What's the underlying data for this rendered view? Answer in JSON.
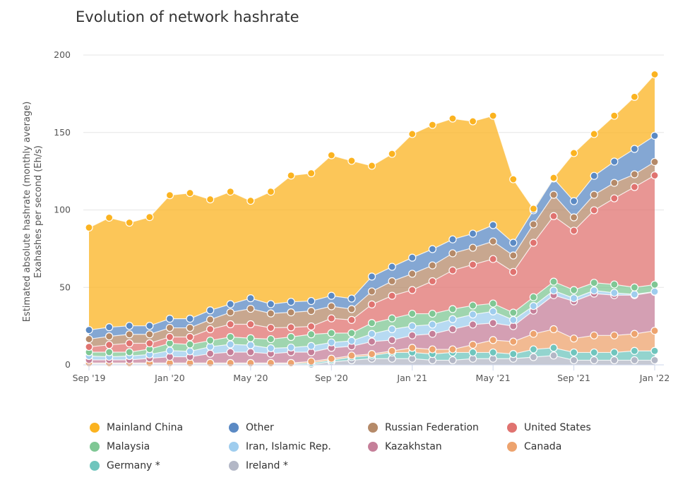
{
  "chart_data": {
    "type": "area",
    "stacked": true,
    "title": "Evolution of network hashrate",
    "ylabel_lines": [
      "Estimated absolute hashrate (monthly average)",
      "Exahashes per second (Eh/s)"
    ],
    "ylim": [
      0,
      200
    ],
    "yticks": [
      0,
      50,
      100,
      150,
      200
    ],
    "grid": true,
    "legend_placement": "bottom",
    "x": [
      "2019-09",
      "2019-10",
      "2019-11",
      "2019-12",
      "2020-01",
      "2020-02",
      "2020-03",
      "2020-04",
      "2020-05",
      "2020-06",
      "2020-07",
      "2020-08",
      "2020-09",
      "2020-10",
      "2020-11",
      "2020-12",
      "2021-01",
      "2021-02",
      "2021-03",
      "2021-04",
      "2021-05",
      "2021-06",
      "2021-07",
      "2021-08",
      "2021-09",
      "2021-10",
      "2021-11",
      "2021-12",
      "2022-01"
    ],
    "xticks": [
      {
        "x": "2019-09",
        "label": "Sep '19"
      },
      {
        "x": "2020-01",
        "label": "Jan '20"
      },
      {
        "x": "2020-05",
        "label": "May '20"
      },
      {
        "x": "2020-09",
        "label": "Sep '20"
      },
      {
        "x": "2021-01",
        "label": "Jan '21"
      },
      {
        "x": "2021-05",
        "label": "May '21"
      },
      {
        "x": "2021-09",
        "label": "Sep '21"
      },
      {
        "x": "2022-01",
        "label": "Jan '22"
      }
    ],
    "series": [
      {
        "name": "Ireland *",
        "color": "#b3b7c6",
        "values": [
          0.2,
          0.2,
          0.2,
          0.2,
          0.2,
          0.2,
          0.2,
          0.2,
          0.2,
          0.2,
          0.2,
          0.2,
          2,
          3,
          4,
          4,
          4,
          3,
          3,
          4,
          4,
          4,
          5,
          6,
          3,
          3,
          3,
          3,
          3
        ]
      },
      {
        "name": "Germany *",
        "color": "#6fc5bd",
        "values": [
          0.5,
          0.5,
          0.5,
          0.5,
          0.5,
          0.5,
          0.5,
          0.5,
          0.5,
          0.5,
          0.5,
          1,
          1,
          2,
          2,
          4,
          4,
          4,
          5,
          4,
          4,
          3,
          5,
          5,
          5,
          5,
          5,
          6,
          6
        ]
      },
      {
        "name": "Canada",
        "color": "#eda36e",
        "values": [
          0.5,
          0.5,
          0.5,
          0.5,
          0.5,
          0.5,
          0.5,
          0.5,
          0.5,
          0.5,
          0.5,
          1,
          1,
          1,
          1,
          1,
          3,
          3,
          2,
          5,
          8,
          8,
          10,
          12,
          9,
          11,
          11,
          11,
          13
        ]
      },
      {
        "name": "Kazakhstan",
        "color": "#c57f99",
        "values": [
          2,
          2,
          2,
          3,
          4,
          4,
          6,
          7,
          7,
          6,
          7,
          6,
          7,
          6,
          8,
          7,
          8,
          10,
          13,
          13,
          11,
          10,
          15,
          22,
          24,
          27,
          26,
          25,
          25
        ]
      },
      {
        "name": "Iran, Islamic Rep.",
        "color": "#9fcdee",
        "values": [
          2.5,
          2,
          2.5,
          2.5,
          4,
          3.5,
          4.5,
          5,
          4.5,
          3.5,
          3,
          4,
          3.5,
          3.5,
          5,
          7,
          6,
          6,
          6.5,
          6.5,
          7.5,
          4,
          3,
          3,
          2,
          2,
          1.5,
          0.5,
          0.3
        ]
      },
      {
        "name": "Malaysia",
        "color": "#7fc794",
        "values": [
          2.5,
          3,
          2.5,
          3.5,
          4.7,
          4.5,
          4,
          4.8,
          4.5,
          5.9,
          6.8,
          7.5,
          6,
          5,
          7,
          7,
          8,
          7,
          6.5,
          5.8,
          5.1,
          4.7,
          5.7,
          5.7,
          5.3,
          5,
          5.4,
          4.5,
          4.5
        ]
      },
      {
        "name": "United States",
        "color": "#e07370",
        "values": [
          3.4,
          4.7,
          5.7,
          3.7,
          4.1,
          4.8,
          7.3,
          8.2,
          9,
          7.3,
          6.2,
          5.1,
          9.5,
          8.5,
          12,
          14.6,
          15.3,
          21,
          25,
          26.4,
          28.7,
          26.3,
          35.1,
          42.3,
          38.3,
          46.8,
          55.6,
          64.8,
          70.5
        ]
      },
      {
        "name": "Russian Federation",
        "color": "#b58a69",
        "values": [
          5,
          5.5,
          5.8,
          5.8,
          5.9,
          5.9,
          6.2,
          7.7,
          10,
          9.3,
          9.7,
          10,
          7.8,
          7,
          8.4,
          9.4,
          10.5,
          10.2,
          11,
          10.9,
          11.4,
          10.6,
          11.9,
          13.8,
          8.6,
          10,
          10,
          8.2,
          8.7
        ]
      },
      {
        "name": "Other",
        "color": "#5b8ac4",
        "values": [
          5.9,
          5.9,
          5.5,
          5.5,
          5.9,
          5.9,
          6,
          5.3,
          6.8,
          6,
          6.8,
          6.4,
          6.8,
          6.8,
          9.6,
          9.3,
          10.4,
          10.5,
          9,
          9.1,
          10.5,
          8.2,
          9.1,
          10.5,
          10.5,
          12.2,
          13.7,
          16.4,
          16.9
        ]
      },
      {
        "name": "Mainland China",
        "color": "#fbb320",
        "values": [
          66.1,
          70.7,
          66.6,
          70.2,
          79.7,
          81.1,
          71.6,
          72.6,
          62.9,
          72.6,
          81.5,
          82.5,
          90.7,
          88.9,
          71.5,
          72.9,
          79.8,
          80.2,
          78,
          72.5,
          70.6,
          41,
          1,
          0.4,
          31,
          27,
          29.6,
          33.6,
          39.6
        ]
      }
    ],
    "legend_order": [
      "Mainland China",
      "Other",
      "Russian Federation",
      "United States",
      "Malaysia",
      "Iran, Islamic Rep.",
      "Kazakhstan",
      "Canada",
      "Germany *",
      "Ireland *"
    ]
  }
}
